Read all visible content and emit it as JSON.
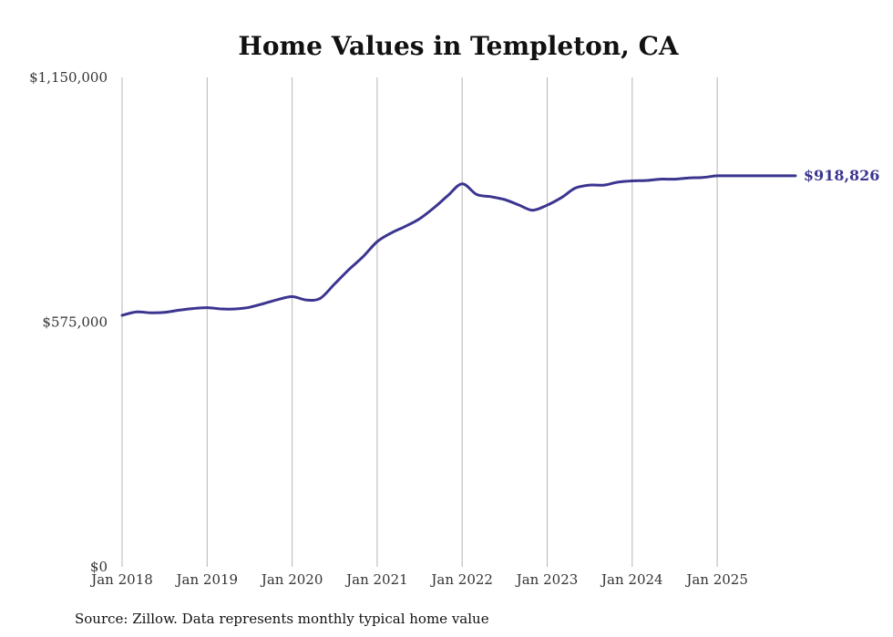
{
  "chart_data": {
    "type": "line",
    "title": "Home Values in Templeton, CA",
    "xlabel": "",
    "ylabel": "",
    "ylim": [
      0,
      1150000
    ],
    "y_ticks": [
      {
        "value": 0,
        "label": "$0"
      },
      {
        "value": 575000,
        "label": "$575,000"
      },
      {
        "value": 1150000,
        "label": "$1,150,000"
      }
    ],
    "x_ticks": [
      {
        "value": 2018,
        "label": "Jan 2018"
      },
      {
        "value": 2019,
        "label": "Jan 2019"
      },
      {
        "value": 2020,
        "label": "Jan 2020"
      },
      {
        "value": 2021,
        "label": "Jan 2021"
      },
      {
        "value": 2022,
        "label": "Jan 2022"
      },
      {
        "value": 2023,
        "label": "Jan 2023"
      },
      {
        "value": 2024,
        "label": "Jan 2024"
      },
      {
        "value": 2025,
        "label": "Jan 2025"
      }
    ],
    "xlim": [
      2018,
      2026
    ],
    "grid": "vertical",
    "series": [
      {
        "name": "Typical home value",
        "color": "#3b3590",
        "x": [
          2018.0,
          2018.17,
          2018.33,
          2018.5,
          2018.67,
          2018.83,
          2019.0,
          2019.17,
          2019.33,
          2019.5,
          2019.67,
          2019.83,
          2020.0,
          2020.17,
          2020.33,
          2020.5,
          2020.67,
          2020.83,
          2021.0,
          2021.17,
          2021.33,
          2021.5,
          2021.67,
          2021.83,
          2022.0,
          2022.17,
          2022.33,
          2022.5,
          2022.67,
          2022.83,
          2023.0,
          2023.17,
          2023.33,
          2023.5,
          2023.67,
          2023.83,
          2024.0,
          2024.17,
          2024.33,
          2024.5,
          2024.67,
          2024.83,
          2025.0,
          2025.17,
          2025.33,
          2025.5,
          2025.67,
          2025.92
        ],
        "values": [
          591000,
          599000,
          597000,
          598000,
          603000,
          607000,
          609000,
          606000,
          606000,
          610000,
          619000,
          628000,
          635000,
          627000,
          631000,
          665000,
          699000,
          728000,
          764000,
          785000,
          800000,
          818000,
          844000,
          872000,
          900000,
          875000,
          870000,
          863000,
          850000,
          838000,
          850000,
          868000,
          890000,
          897000,
          897000,
          904000,
          907000,
          908000,
          911000,
          911000,
          914000,
          915000,
          918826,
          918826,
          918826,
          918826,
          918826,
          918826
        ],
        "end_label": "$918,826"
      }
    ]
  },
  "source": "Source: Zillow. Data represents monthly typical home value"
}
